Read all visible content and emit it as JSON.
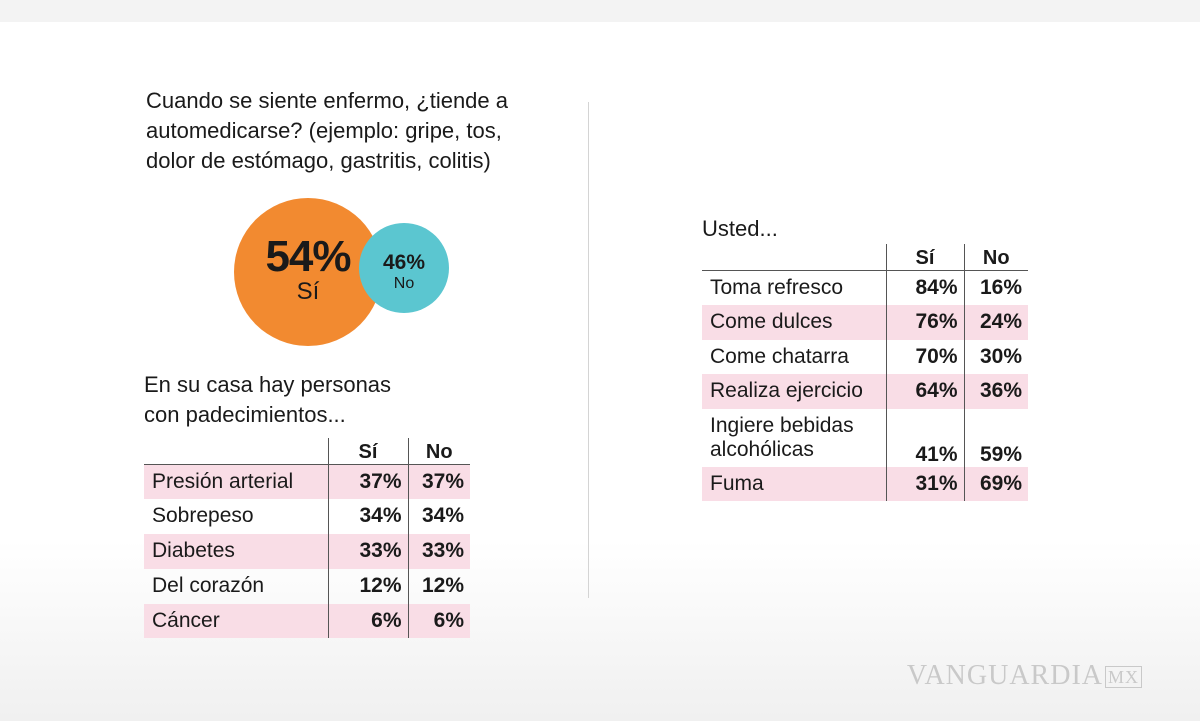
{
  "left": {
    "question": [
      "Cuando se siente enfermo, ¿tiende a",
      "automedicarse? (ejemplo: gripe, tos,",
      "dolor de estómago, gastritis, colitis)"
    ],
    "table_title": [
      "En su casa hay personas",
      "con padecimientos..."
    ]
  },
  "right": {
    "table_title": "Usted..."
  },
  "watermark": {
    "brand": "VANGUARDIA",
    "suffix": "MX"
  },
  "colors": {
    "si": "#f28a30",
    "no": "#5bc6d0",
    "highlight": "#f9dde6"
  },
  "chart_data": [
    {
      "type": "pie",
      "title": "Cuando se siente enfermo, ¿tiende a automedicarse? (ejemplo: gripe, tos, dolor de estómago, gastritis, colitis)",
      "slices": [
        {
          "label": "Sí",
          "value": 54,
          "display": "54%"
        },
        {
          "label": "No",
          "value": 46,
          "display": "46%"
        }
      ]
    },
    {
      "type": "table",
      "title": "En su casa hay personas con padecimientos...",
      "columns": [
        "Sí",
        "No"
      ],
      "rows": [
        {
          "label": "Presión arterial",
          "si": "37%",
          "no": "37%"
        },
        {
          "label": "Sobrepeso",
          "si": "34%",
          "no": "34%"
        },
        {
          "label": "Diabetes",
          "si": "33%",
          "no": "33%"
        },
        {
          "label": "Del corazón",
          "si": "12%",
          "no": "12%"
        },
        {
          "label": "Cáncer",
          "si": "6%",
          "no": "6%"
        }
      ]
    },
    {
      "type": "table",
      "title": "Usted...",
      "columns": [
        "Sí",
        "No"
      ],
      "rows": [
        {
          "label": "Toma refresco",
          "si": "84%",
          "no": "16%"
        },
        {
          "label": "Come dulces",
          "si": "76%",
          "no": "24%"
        },
        {
          "label": "Come chatarra",
          "si": "70%",
          "no": "30%"
        },
        {
          "label": "Realiza ejercicio",
          "si": "64%",
          "no": "36%"
        },
        {
          "label": "Ingiere bebidas alcohólicas",
          "label_lines": [
            "Ingiere bebidas",
            "alcohólicas"
          ],
          "si": "41%",
          "no": "59%"
        },
        {
          "label": "Fuma",
          "si": "31%",
          "no": "69%"
        }
      ]
    }
  ]
}
